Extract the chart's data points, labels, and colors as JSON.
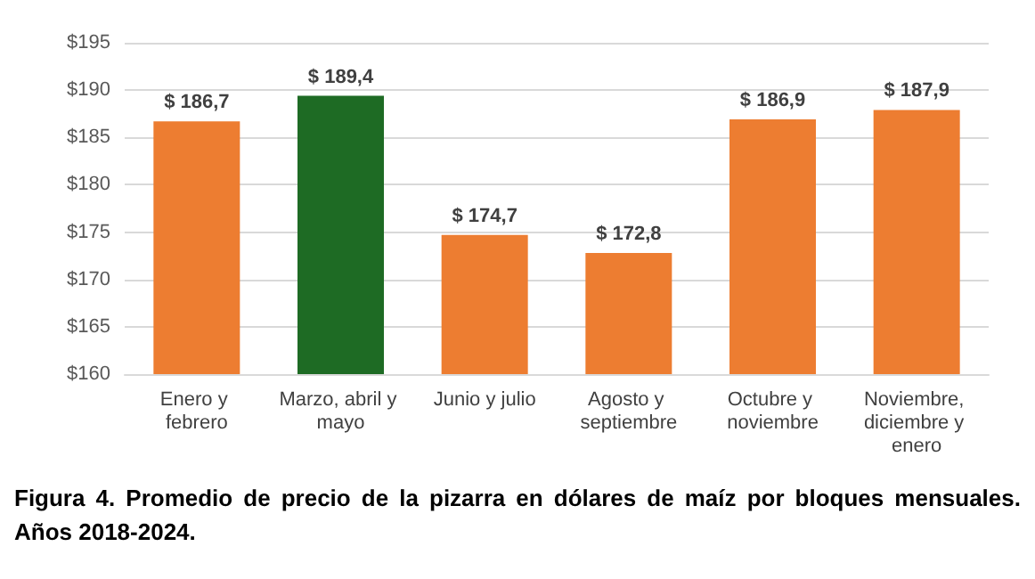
{
  "chart_data": {
    "type": "bar",
    "categories": [
      "Enero y febrero",
      "Marzo, abril y mayo",
      "Junio y julio",
      "Agosto y septiembre",
      "Octubre y noviembre",
      "Noviembre, diciembre y enero"
    ],
    "values": [
      186.7,
      189.4,
      174.7,
      172.8,
      186.9,
      187.9
    ],
    "colors": [
      "#ed7d31",
      "#1e6b24",
      "#ed7d31",
      "#ed7d31",
      "#ed7d31",
      "#ed7d31"
    ],
    "value_labels": [
      "$ 186,7",
      "$ 189,4",
      "$ 174,7",
      "$ 172,8",
      "$ 186,9",
      "$ 187,9"
    ],
    "ylim": [
      160,
      195
    ],
    "yticks": [
      {
        "value": 160,
        "label": "$160"
      },
      {
        "value": 165,
        "label": "$165"
      },
      {
        "value": 170,
        "label": "$170"
      },
      {
        "value": 175,
        "label": "$175"
      },
      {
        "value": 180,
        "label": "$180"
      },
      {
        "value": 185,
        "label": "$185"
      },
      {
        "value": 190,
        "label": "$190"
      },
      {
        "value": 195,
        "label": "$195"
      }
    ],
    "grid": "y",
    "annotations": [
      "Figura 4. Promedio de precio de la pizarra en dólares de maíz por bloques mensuales. Años 2018-2024."
    ]
  }
}
